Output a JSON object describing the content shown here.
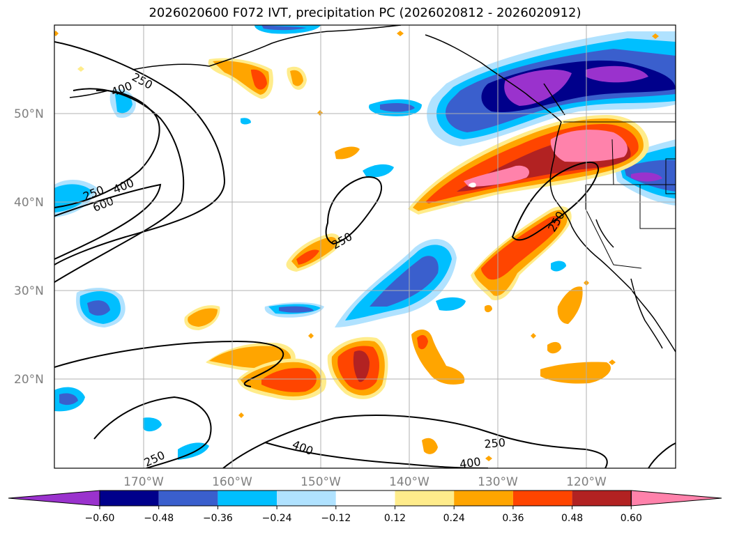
{
  "title": "2026020600 F072 IVT, precipitation PC (2026020812 - 2026020912)",
  "map": {
    "lat_ticks": [
      "50°N",
      "40°N",
      "30°N",
      "20°N"
    ],
    "lon_ticks": [
      "170°W",
      "160°W",
      "150°W",
      "140°W",
      "130°W",
      "120°W"
    ],
    "ivt_contour_labels": [
      "250",
      "400",
      "250",
      "400",
      "600",
      "250",
      "250",
      "250",
      "400",
      "250",
      "400"
    ]
  },
  "colorbar": {
    "colors": [
      "#9a32cd",
      "#00008b",
      "#3a5fcd",
      "#00bfff",
      "#b0e2ff",
      "#ffffff",
      "#ffec8b",
      "#ffa500",
      "#ff4500",
      "#b22222",
      "#ff82ab"
    ],
    "labels": [
      "−0.60",
      "−0.48",
      "−0.36",
      "−0.24",
      "−0.12",
      "0.12",
      "0.24",
      "0.36",
      "0.48",
      "0.60"
    ]
  },
  "colors": {
    "purple": "#9a32cd",
    "navy": "#00008b",
    "blue": "#3a5fcd",
    "cyan": "#00bfff",
    "lightblue": "#b0e2ff",
    "yellow": "#ffec8b",
    "orange": "#ffa500",
    "redorange": "#ff4500",
    "firebrick": "#b22222",
    "pink": "#ff82ab"
  }
}
